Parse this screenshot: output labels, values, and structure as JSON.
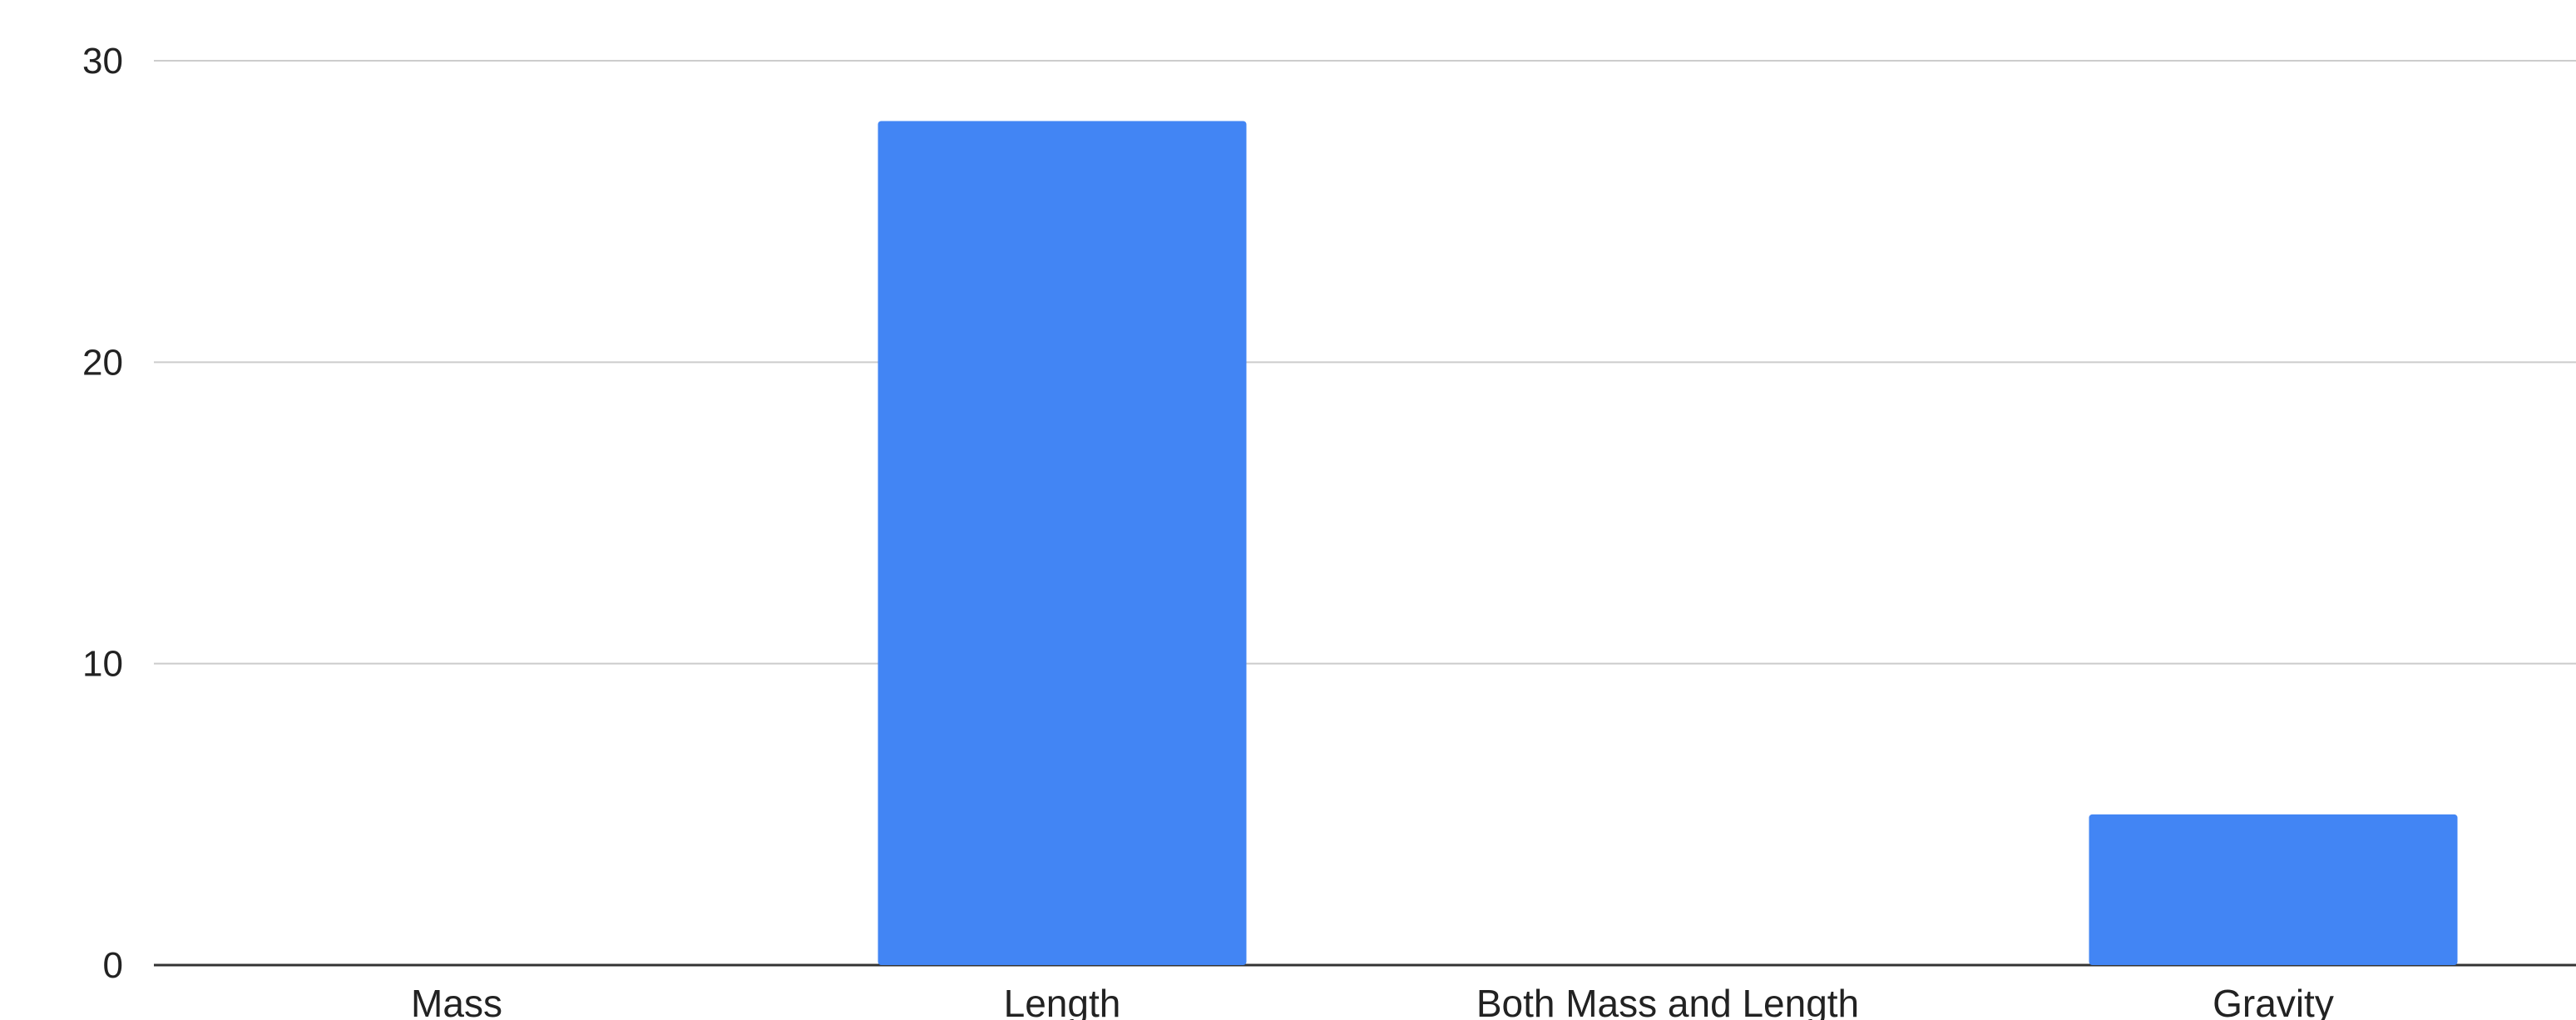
{
  "chart_data": {
    "type": "bar",
    "categories": [
      "Mass",
      "Length",
      "Both Mass and Length",
      "Gravity"
    ],
    "values": [
      0,
      28,
      0,
      5
    ],
    "ylim": [
      0,
      30
    ],
    "yticks": [
      0,
      10,
      20,
      30
    ],
    "grid": true,
    "title": "",
    "xlabel": "",
    "ylabel": "",
    "bar_color": "#4285f4",
    "legend": "none"
  }
}
